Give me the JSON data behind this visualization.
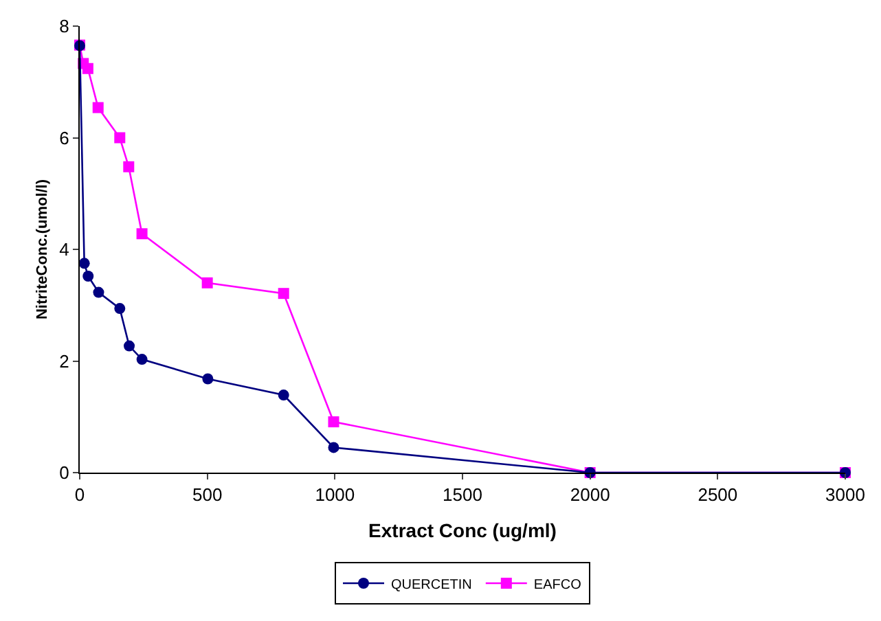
{
  "chart_data": {
    "type": "line",
    "xlabel": "Extract Conc (ug/ml)",
    "ylabel": "NitriteConc.(umol/l)",
    "xlim": [
      0,
      3000
    ],
    "xticks": [
      0,
      500,
      1000,
      1500,
      2000,
      2500,
      3000
    ],
    "ylim": [
      0,
      8
    ],
    "yticks": [
      0,
      2,
      4,
      6,
      8
    ],
    "grid": false,
    "legend": "bottom",
    "series": [
      {
        "name": "QUERCETIN",
        "color": "#000080",
        "marker": "circle",
        "x": [
          0,
          18,
          33,
          74,
          157,
          194,
          244,
          502,
          799,
          995,
          2000,
          3000
        ],
        "values": [
          7.65,
          3.75,
          3.52,
          3.23,
          2.94,
          2.27,
          2.03,
          1.68,
          1.39,
          0.45,
          0,
          0
        ]
      },
      {
        "name": "EAFCO",
        "color": "#ff00ff",
        "marker": "square",
        "x": [
          0,
          14,
          32,
          72,
          157,
          192,
          244,
          500,
          799,
          995,
          2000,
          3000
        ],
        "values": [
          7.66,
          7.33,
          7.24,
          6.54,
          6.0,
          5.48,
          4.28,
          3.4,
          3.21,
          0.91,
          0,
          0
        ]
      }
    ]
  }
}
